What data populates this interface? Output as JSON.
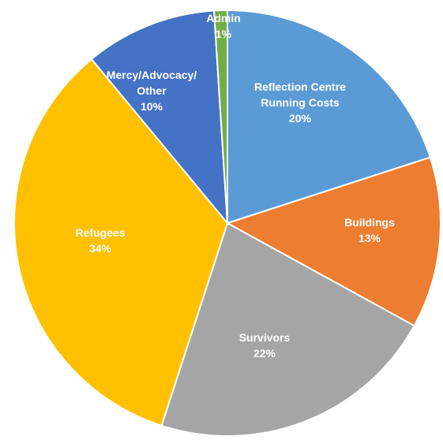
{
  "chart_data": {
    "type": "pie",
    "title": "",
    "slices": [
      {
        "label": "Reflection Centre Running Costs",
        "label_lines": [
          "Reflection Centre",
          "Running Costs"
        ],
        "value": 20,
        "value_label": "20%",
        "color": "#5B9BD5"
      },
      {
        "label": "Buildings",
        "label_lines": [
          "Buildings"
        ],
        "value": 13,
        "value_label": "13%",
        "color": "#ED7D31"
      },
      {
        "label": "Survivors",
        "label_lines": [
          "Survivors"
        ],
        "value": 22,
        "value_label": "22%",
        "color": "#A5A5A5"
      },
      {
        "label": "Refugees",
        "label_lines": [
          "Refugees"
        ],
        "value": 34,
        "value_label": "34%",
        "color": "#FFC000"
      },
      {
        "label": "Mercy/Advocacy/Other",
        "label_lines": [
          "Mercy/Advocacy/",
          "Other"
        ],
        "value": 10,
        "value_label": "10%",
        "color": "#4472C4"
      },
      {
        "label": "Admin",
        "label_lines": [
          "Admin"
        ],
        "value": 1,
        "value_label": "1%",
        "color": "#70AD47"
      }
    ],
    "start_angle_deg": 0,
    "direction": "clockwise",
    "legend": "none",
    "data_labels": "inside"
  }
}
